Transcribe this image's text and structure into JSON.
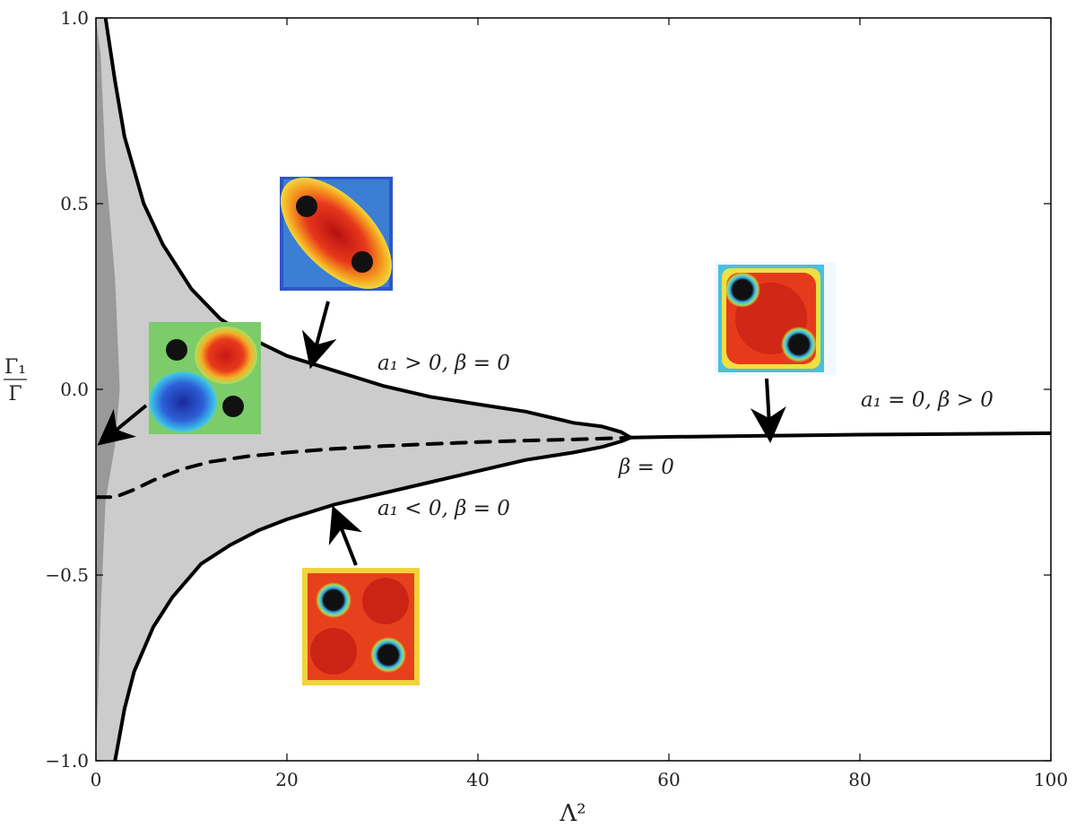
{
  "chart_data": {
    "type": "line",
    "xlabel": "Λ²",
    "ylabel": {
      "numerator": "Γ₁",
      "denominator": "Γ"
    },
    "xlim": [
      0,
      100
    ],
    "ylim": [
      -1.0,
      1.0
    ],
    "xticks": [
      0,
      20,
      40,
      60,
      80,
      100
    ],
    "yticks": [
      -1.0,
      -0.5,
      0.0,
      0.5,
      1.0
    ],
    "xtick_labels": [
      "0",
      "20",
      "40",
      "60",
      "80",
      "100"
    ],
    "ytick_labels": [
      "−1.0",
      "−0.5",
      "0.0",
      "0.5",
      "1.0"
    ],
    "grid": false,
    "series": [
      {
        "style": "solid",
        "color": "#000000",
        "x": [
          1.0,
          2.0,
          3.0,
          5.0,
          7.0,
          10.0,
          13.0,
          16.0,
          20.0,
          25.0,
          30.0,
          35.0,
          40.0,
          45.0,
          50.0,
          53.0,
          55.0,
          56.0
        ],
        "y": [
          1.0,
          0.83,
          0.68,
          0.5,
          0.39,
          0.27,
          0.19,
          0.14,
          0.09,
          0.05,
          0.01,
          -0.02,
          -0.04,
          -0.06,
          -0.09,
          -0.1,
          -0.115,
          -0.13
        ]
      },
      {
        "style": "solid",
        "color": "#000000",
        "x": [
          2.0,
          3.0,
          4.0,
          6.0,
          8.0,
          11.0,
          14.0,
          17.0,
          20.0,
          25.0,
          30.0,
          35.0,
          40.0,
          45.0,
          50.0,
          53.0,
          55.0,
          56.0
        ],
        "y": [
          -1.0,
          -0.86,
          -0.76,
          -0.64,
          -0.56,
          -0.47,
          -0.42,
          -0.38,
          -0.35,
          -0.31,
          -0.28,
          -0.25,
          -0.22,
          -0.19,
          -0.17,
          -0.155,
          -0.14,
          -0.13
        ]
      },
      {
        "style": "solid",
        "color": "#000000",
        "x": [
          56.0,
          60.0,
          70.0,
          80.0,
          90.0,
          100.0
        ],
        "y": [
          -0.13,
          -0.128,
          -0.125,
          -0.122,
          -0.12,
          -0.118
        ]
      },
      {
        "style": "dashed",
        "color": "#000000",
        "x": [
          0.0,
          2.0,
          4.0,
          6.0,
          9.0,
          12.0,
          16.0,
          20.0,
          25.0,
          30.0,
          35.0,
          40.0,
          45.0,
          50.0,
          55.0,
          56.0
        ],
        "y": [
          -0.29,
          -0.29,
          -0.27,
          -0.245,
          -0.215,
          -0.195,
          -0.18,
          -0.17,
          -0.16,
          -0.153,
          -0.147,
          -0.142,
          -0.138,
          -0.135,
          -0.131,
          -0.13
        ]
      }
    ],
    "shaded_regions": [
      {
        "color": "#cccccc",
        "between": [
          "series[0]",
          "series[1]"
        ],
        "note": ""
      },
      {
        "color": "#999999",
        "x": [
          0.0,
          0.5,
          1.0,
          2.0,
          2.5,
          2.0,
          1.0,
          0.5,
          0.0
        ],
        "y": [
          -1.0,
          -0.6,
          -0.3,
          -0.15,
          0.0,
          0.3,
          0.6,
          0.9,
          1.0
        ]
      }
    ],
    "annotations": [
      {
        "text": "a₁ > 0, β = 0"
      },
      {
        "text": "a₁ < 0, β = 0"
      },
      {
        "text": "β = 0"
      },
      {
        "text": "a₁ = 0, β > 0"
      }
    ],
    "insets": [
      {
        "name": "inset-diagonal-vortex-pair"
      },
      {
        "name": "inset-cross-vortex-pair"
      },
      {
        "name": "inset-antidiagonal-vortex-pair"
      },
      {
        "name": "inset-far-right-vortex-pair"
      }
    ]
  }
}
